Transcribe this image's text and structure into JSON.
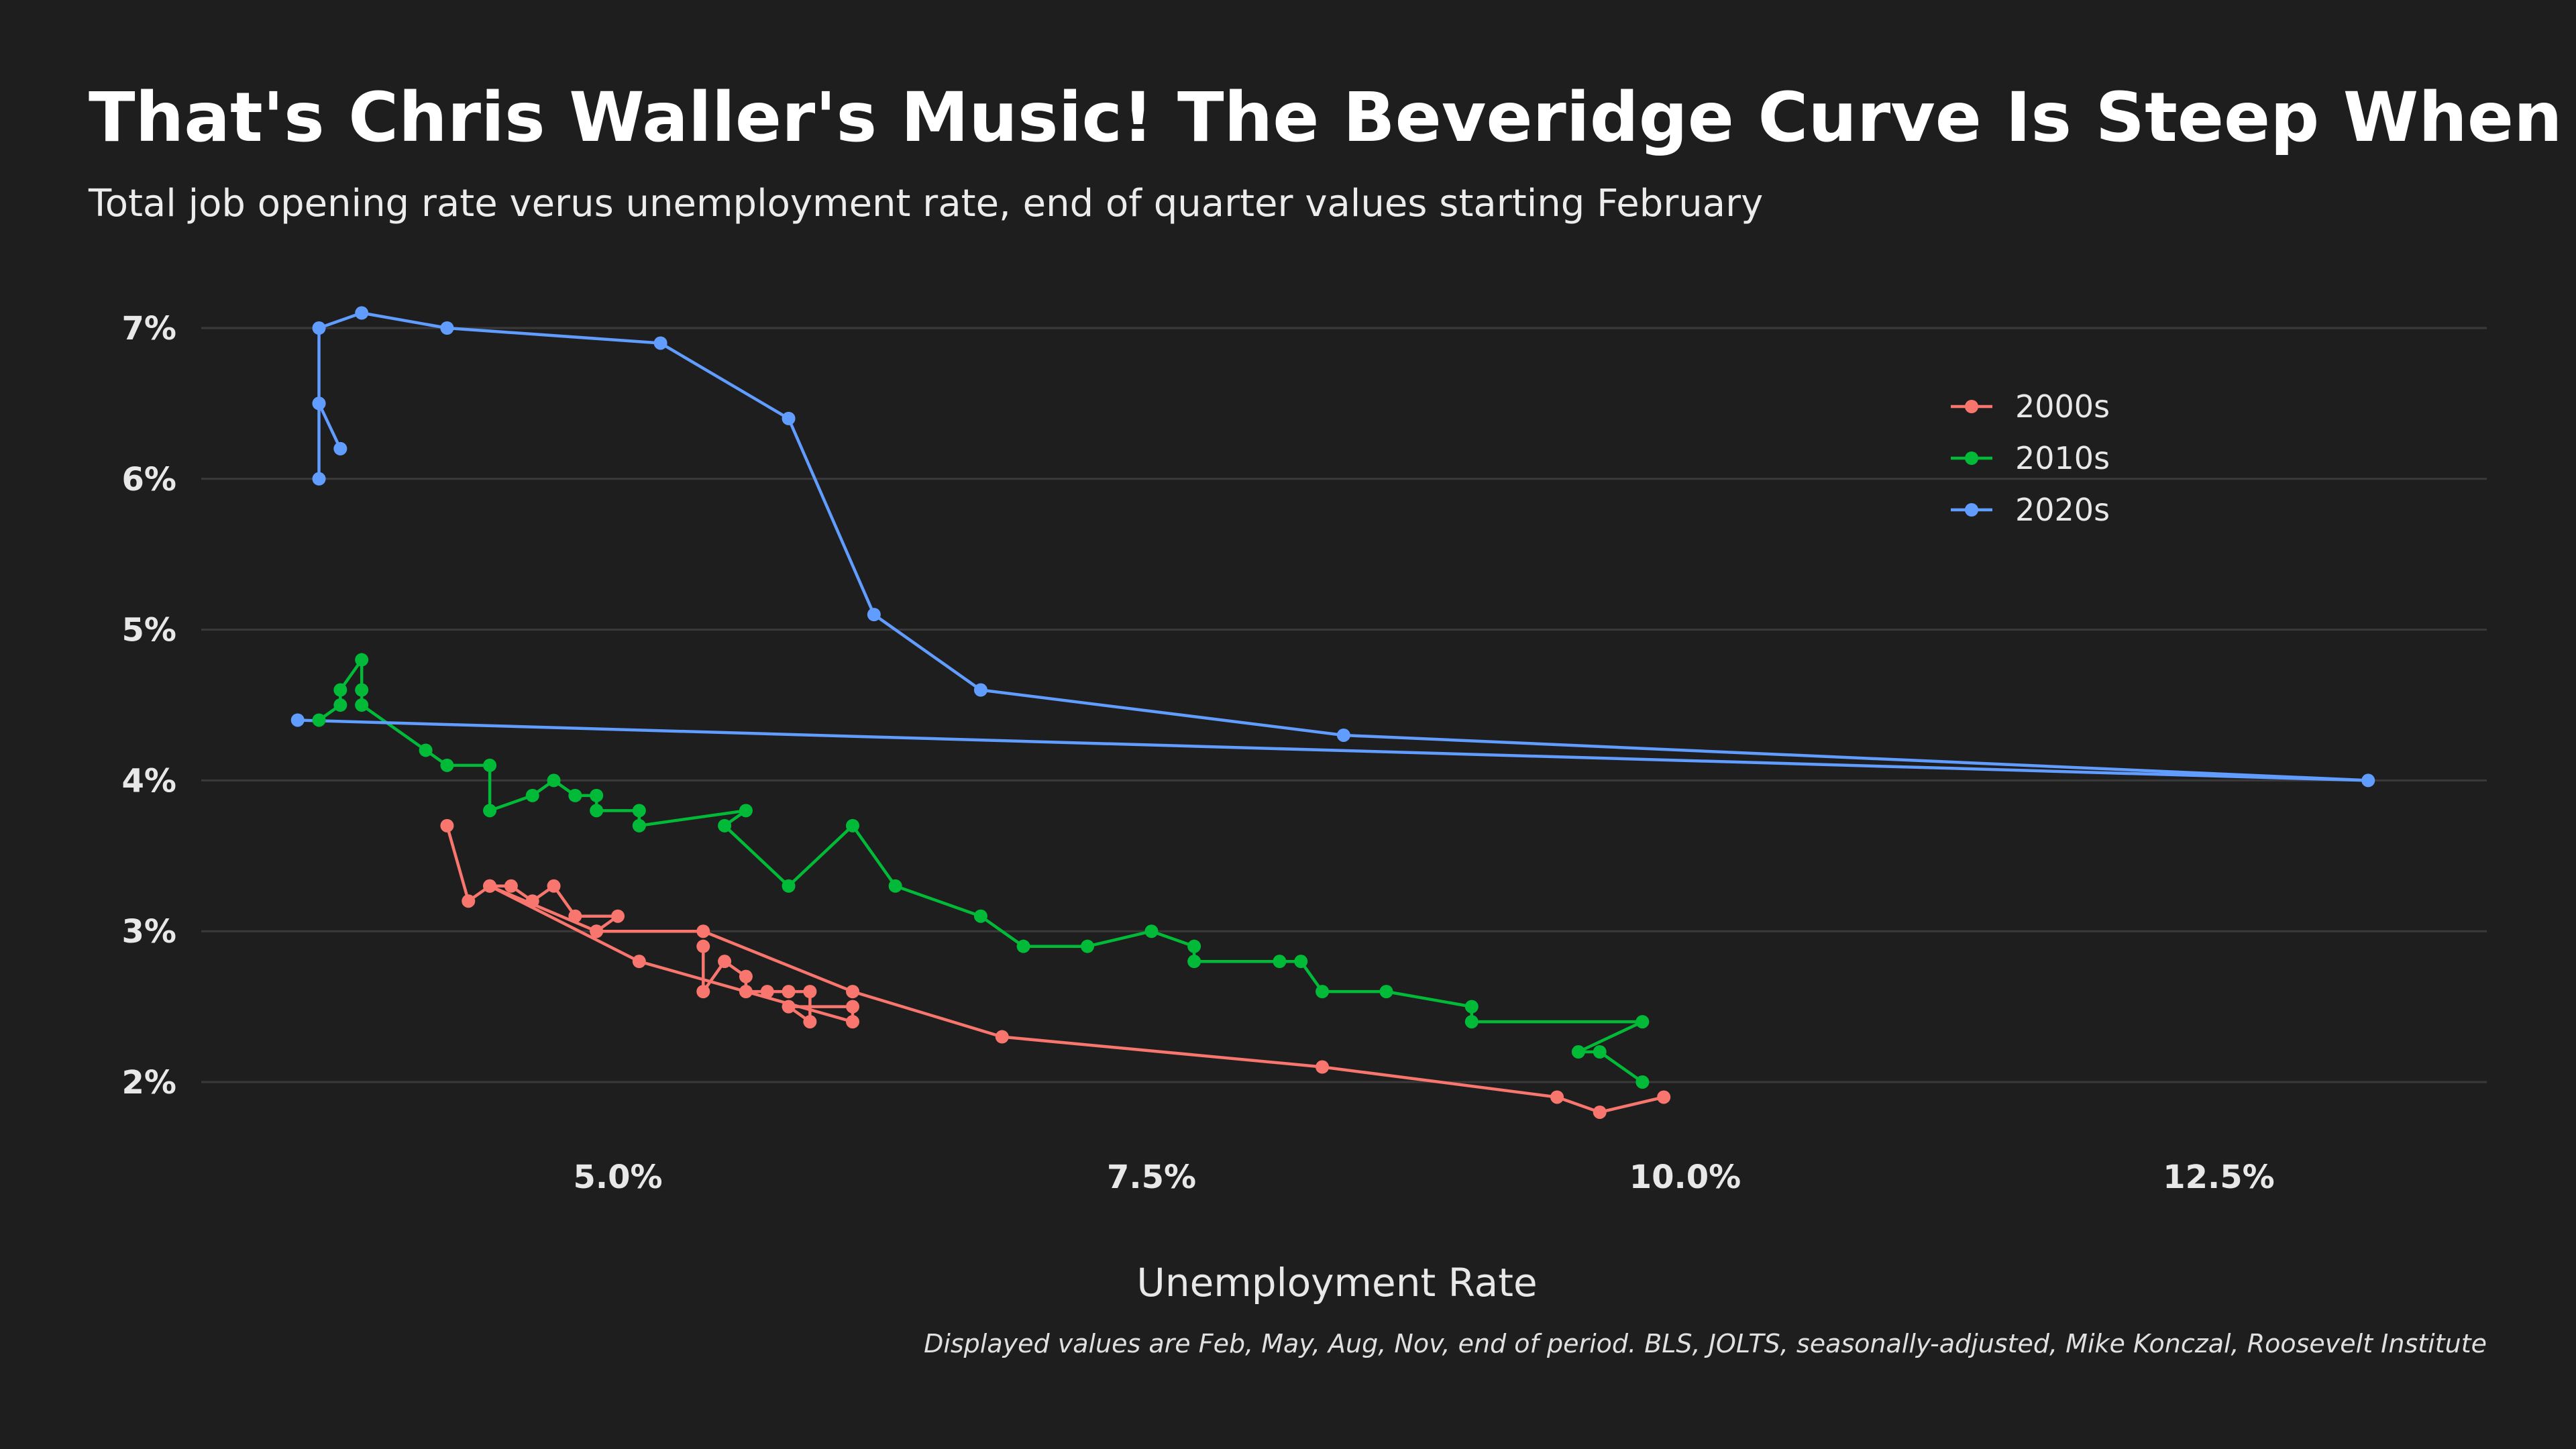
{
  "colors": {
    "background": "#1e1e1e",
    "grid": "#3a3a3a",
    "series_2000s": "#f8766d",
    "series_2010s": "#00ba38",
    "series_2020s": "#619cff"
  },
  "chart_data": {
    "type": "line",
    "title": "That's Chris Waller's Music! The Beveridge Curve Is Steep When V-U Is High",
    "subtitle": "Total job opening rate verus unemployment rate, end of quarter values starting February",
    "xlabel": "Unemployment Rate",
    "ylabel": "",
    "caption": "Displayed values are Feb, May, Aug, Nov, end of period. BLS, JOLTS, seasonally-adjusted, Mike Konczal, Roosevelt Institute",
    "xlim": [
      3.05,
      13.6
    ],
    "ylim": [
      1.55,
      7.3
    ],
    "x_ticks": [
      5.0,
      7.5,
      10.0,
      12.5
    ],
    "x_tick_labels": [
      "5.0%",
      "7.5%",
      "10.0%",
      "12.5%"
    ],
    "y_ticks": [
      2,
      3,
      4,
      5,
      6,
      7
    ],
    "y_tick_labels": [
      "2%",
      "3%",
      "4%",
      "5%",
      "6%",
      "7%"
    ],
    "grid": "horizontal major",
    "legend_position": "top-right",
    "series": [
      {
        "name": "2000s",
        "points": [
          [
            4.2,
            3.7
          ],
          [
            4.3,
            3.2
          ],
          [
            4.4,
            3.3
          ],
          [
            4.5,
            3.3
          ],
          [
            4.6,
            3.2
          ],
          [
            4.7,
            3.3
          ],
          [
            4.8,
            3.1
          ],
          [
            5.0,
            3.1
          ],
          [
            4.9,
            3.0
          ],
          [
            5.4,
            3.0
          ],
          [
            6.1,
            2.6
          ],
          [
            6.8,
            2.3
          ],
          [
            8.3,
            2.1
          ],
          [
            9.4,
            1.9
          ],
          [
            9.6,
            1.8
          ],
          [
            9.9,
            1.9
          ]
        ],
        "points_extra": [
          [
            5.4,
            2.9
          ],
          [
            5.4,
            2.6
          ],
          [
            5.5,
            2.8
          ],
          [
            5.6,
            2.7
          ],
          [
            5.6,
            2.6
          ],
          [
            5.7,
            2.6
          ],
          [
            5.8,
            2.6
          ],
          [
            5.9,
            2.6
          ],
          [
            5.9,
            2.4
          ],
          [
            5.8,
            2.5
          ],
          [
            6.1,
            2.5
          ],
          [
            6.1,
            2.4
          ],
          [
            5.1,
            2.8
          ],
          [
            4.4,
            3.3
          ],
          [
            4.9,
            3.0
          ]
        ]
      },
      {
        "name": "2010s",
        "points": [
          [
            9.8,
            2.0
          ],
          [
            9.6,
            2.2
          ],
          [
            9.5,
            2.2
          ],
          [
            9.8,
            2.4
          ],
          [
            9.0,
            2.4
          ],
          [
            9.0,
            2.5
          ],
          [
            8.6,
            2.6
          ],
          [
            8.3,
            2.6
          ],
          [
            8.2,
            2.8
          ],
          [
            8.1,
            2.8
          ],
          [
            7.7,
            2.8
          ],
          [
            7.7,
            2.9
          ],
          [
            7.5,
            3.0
          ],
          [
            7.2,
            2.9
          ],
          [
            6.9,
            2.9
          ],
          [
            6.7,
            3.1
          ],
          [
            6.3,
            3.3
          ],
          [
            6.1,
            3.7
          ],
          [
            5.8,
            3.3
          ],
          [
            5.5,
            3.7
          ],
          [
            5.6,
            3.8
          ],
          [
            5.1,
            3.7
          ],
          [
            5.1,
            3.8
          ],
          [
            4.9,
            3.8
          ],
          [
            4.9,
            3.9
          ],
          [
            4.8,
            3.9
          ],
          [
            4.7,
            4.0
          ],
          [
            4.6,
            3.9
          ],
          [
            4.4,
            3.8
          ],
          [
            4.4,
            4.1
          ],
          [
            4.2,
            4.1
          ],
          [
            4.1,
            4.2
          ],
          [
            3.8,
            4.5
          ],
          [
            3.8,
            4.6
          ],
          [
            3.8,
            4.8
          ],
          [
            3.7,
            4.6
          ],
          [
            3.7,
            4.5
          ],
          [
            3.6,
            4.4
          ]
        ]
      },
      {
        "name": "2020s",
        "points": [
          [
            3.5,
            4.4
          ],
          [
            13.2,
            4.0
          ],
          [
            8.4,
            4.3
          ],
          [
            6.7,
            4.6
          ],
          [
            6.2,
            5.1
          ],
          [
            5.8,
            6.4
          ],
          [
            5.2,
            6.9
          ],
          [
            4.2,
            7.0
          ],
          [
            3.8,
            7.1
          ],
          [
            3.6,
            7.0
          ],
          [
            3.6,
            6.5
          ],
          [
            3.6,
            6.0
          ],
          [
            3.6,
            6.5
          ],
          [
            3.7,
            6.2
          ]
        ]
      }
    ]
  }
}
